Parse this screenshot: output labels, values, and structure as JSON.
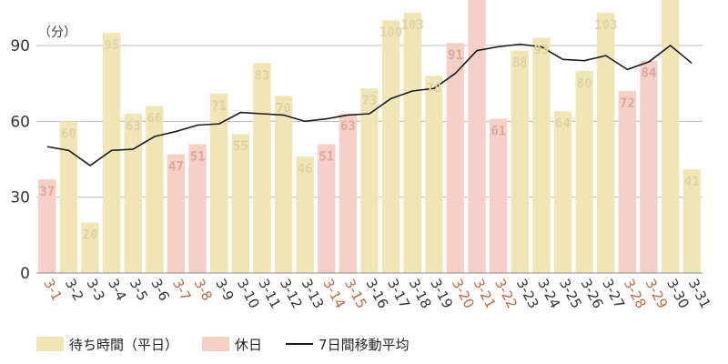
{
  "chart_data": {
    "type": "bar",
    "ylabel": "（分）",
    "ylim": [
      0,
      108
    ],
    "yticks": [
      0,
      30,
      60,
      90
    ],
    "grid": true,
    "legend_position": "bottom-left",
    "categories": [
      "3-1",
      "3-2",
      "3-3",
      "3-4",
      "3-5",
      "3-6",
      "3-7",
      "3-8",
      "3-9",
      "3-10",
      "3-11",
      "3-12",
      "3-13",
      "3-14",
      "3-15",
      "3-16",
      "3-17",
      "3-18",
      "3-19",
      "3-20",
      "3-21",
      "3-22",
      "3-23",
      "3-24",
      "3-25",
      "3-26",
      "3-27",
      "3-28",
      "3-29",
      "3-30",
      "3-31"
    ],
    "holidays": [
      "3-1",
      "3-7",
      "3-8",
      "3-14",
      "3-15",
      "3-20",
      "3-21",
      "3-22",
      "3-28",
      "3-29"
    ],
    "series": [
      {
        "name": "待ち時間（平日）",
        "role": "weekday-bars",
        "values": [
          null,
          60,
          20,
          95,
          63,
          66,
          null,
          null,
          71,
          55,
          83,
          70,
          46,
          null,
          null,
          73,
          100,
          103,
          78,
          null,
          null,
          null,
          88,
          93,
          64,
          80,
          103,
          null,
          null,
          115,
          41
        ]
      },
      {
        "name": "休日",
        "role": "holiday-bars",
        "values": [
          37,
          null,
          null,
          null,
          null,
          null,
          47,
          51,
          null,
          null,
          null,
          null,
          null,
          51,
          63,
          null,
          null,
          null,
          null,
          91,
          115,
          61,
          null,
          null,
          null,
          null,
          null,
          72,
          84,
          null,
          null
        ]
      },
      {
        "name": "7日間移動平均",
        "role": "moving-average-line",
        "values": [
          50,
          48.5,
          42.5,
          48.5,
          49,
          54,
          56,
          58.5,
          59,
          63.5,
          63,
          62.5,
          60,
          61,
          62.5,
          63,
          69,
          72,
          73,
          79,
          88,
          89.5,
          90.5,
          89.5,
          84.5,
          84,
          86,
          80.5,
          83.5,
          90,
          83
        ]
      }
    ],
    "data_labels": [
      "37",
      "60",
      "20",
      "95",
      "63",
      "66",
      "47",
      "51",
      "71",
      "55",
      "83",
      "70",
      "46",
      "51",
      "63",
      "73",
      "100",
      "103",
      "78",
      "91",
      "",
      "61",
      "88",
      "93",
      "64",
      "80",
      "103",
      "72",
      "84",
      "",
      "41"
    ],
    "colors": {
      "weekday": "#f0e6b5",
      "holiday": "#f6cfc6",
      "line": "#1a1a1a",
      "weekday_label": "#ddd4a6",
      "holiday_label": "#dba99e",
      "holiday_tick": "#c06a45",
      "tick": "#333333"
    }
  },
  "legend": {
    "weekday": "待ち時間（平日）",
    "holiday": "休日",
    "moving_average": "7日間移動平均"
  }
}
